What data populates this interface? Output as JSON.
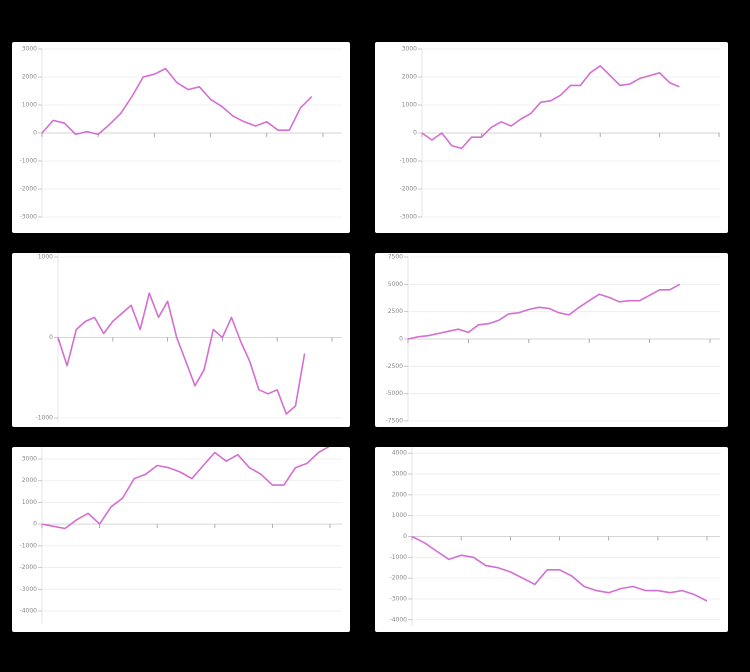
{
  "chart_data": [
    {
      "type": "line",
      "color": "#d46fd2",
      "grid": true,
      "x": [
        0,
        1,
        2,
        3,
        4,
        5,
        6,
        7,
        8,
        9,
        10,
        11,
        12,
        13,
        14,
        15,
        16,
        17,
        18,
        19,
        20,
        21,
        22,
        23,
        24
      ],
      "values": [
        0,
        450,
        350,
        -50,
        50,
        -50,
        300,
        700,
        1300,
        2000,
        2100,
        2300,
        1800,
        1550,
        1650,
        1200,
        950,
        600,
        400,
        250,
        400,
        100,
        100,
        900,
        1300
      ],
      "xlim": [
        0,
        25
      ],
      "xticks": [
        0,
        5,
        10,
        15,
        20,
        25
      ],
      "ylim": [
        -3000,
        3000
      ],
      "yticks": [
        3000,
        2000,
        1000,
        0,
        -1000,
        -2000,
        -3000
      ]
    },
    {
      "type": "line",
      "color": "#d46fd2",
      "grid": true,
      "x": [
        0,
        1,
        2,
        3,
        4,
        5,
        6,
        7,
        8,
        9,
        10,
        11,
        12,
        13,
        14,
        15,
        16,
        17,
        18,
        19,
        20,
        21,
        22,
        23,
        24,
        25,
        26
      ],
      "values": [
        0,
        -250,
        0,
        -450,
        -550,
        -150,
        -150,
        200,
        400,
        250,
        500,
        700,
        1100,
        1150,
        1350,
        1700,
        1700,
        2150,
        2400,
        2050,
        1700,
        1750,
        1950,
        2050,
        2150,
        1800,
        1650
      ],
      "xlim": [
        0,
        30
      ],
      "xticks": [
        0,
        6,
        12,
        18,
        24,
        30
      ],
      "ylim": [
        -3000,
        3000
      ],
      "yticks": [
        3000,
        2000,
        1000,
        0,
        -1000,
        -2000,
        -3000
      ]
    },
    {
      "type": "line",
      "color": "#d46fd2",
      "grid": true,
      "x": [
        0,
        1,
        2,
        3,
        4,
        5,
        6,
        7,
        8,
        9,
        10,
        11,
        12,
        13,
        14,
        15,
        16,
        17,
        18,
        19,
        20,
        21,
        22,
        23,
        24,
        25,
        26,
        27
      ],
      "values": [
        0,
        -350,
        100,
        200,
        250,
        50,
        200,
        300,
        400,
        100,
        550,
        250,
        450,
        0,
        -300,
        -600,
        -400,
        100,
        0,
        250,
        -50,
        -300,
        -650,
        -700,
        -650,
        -950,
        -850,
        -200
      ],
      "xlim": [
        0,
        30
      ],
      "xticks": [
        0,
        6,
        12,
        18,
        24,
        30
      ],
      "ylim": [
        -1050,
        1050
      ],
      "yticks": [
        1000,
        0,
        -1000
      ]
    },
    {
      "type": "line",
      "color": "#d46fd2",
      "grid": true,
      "x": [
        0,
        1,
        2,
        3,
        4,
        5,
        6,
        7,
        8,
        9,
        10,
        11,
        12,
        13,
        14,
        15,
        16,
        17,
        18,
        19,
        20,
        21,
        22,
        23,
        24,
        25,
        26,
        27
      ],
      "values": [
        0,
        200,
        300,
        500,
        700,
        900,
        600,
        1300,
        1400,
        1700,
        2300,
        2400,
        2700,
        2900,
        2800,
        2400,
        2200,
        2900,
        3500,
        4100,
        3800,
        3400,
        3500,
        3500,
        4000,
        4500,
        4500,
        5000
      ],
      "xlim": [
        0,
        30
      ],
      "xticks": [
        0,
        6,
        12,
        18,
        24,
        30
      ],
      "ylim": [
        -7500,
        7500
      ],
      "yticks": [
        7500,
        5000,
        2500,
        0,
        -2500,
        -5000,
        -7500
      ]
    },
    {
      "type": "line",
      "color": "#d46fd2",
      "grid": true,
      "x": [
        0,
        1,
        2,
        3,
        4,
        5,
        6,
        7,
        8,
        9,
        10,
        11,
        12,
        13,
        14,
        15,
        16,
        17,
        18,
        19,
        20,
        21,
        22,
        23,
        24,
        25
      ],
      "values": [
        0,
        -100,
        -200,
        200,
        500,
        0,
        800,
        1200,
        2100,
        2300,
        2700,
        2600,
        2400,
        2100,
        2700,
        3300,
        2900,
        3200,
        2600,
        2300,
        1800,
        1800,
        2600,
        2800,
        3300,
        3600
      ],
      "xlim": [
        0,
        25
      ],
      "xticks": [
        0,
        5,
        10,
        15,
        20,
        25
      ],
      "ylim": [
        -4600,
        3600
      ],
      "yticks": [
        3000,
        2000,
        1000,
        0,
        -1000,
        -2000,
        -3000,
        -4000
      ]
    },
    {
      "type": "line",
      "color": "#d46fd2",
      "grid": true,
      "x": [
        0,
        1,
        2,
        3,
        4,
        5,
        6,
        7,
        8,
        9,
        10,
        11,
        12,
        13,
        14,
        15,
        16,
        17,
        18,
        19,
        20,
        21,
        22,
        23,
        24
      ],
      "values": [
        0,
        -300,
        -700,
        -1100,
        -900,
        -1000,
        -1400,
        -1500,
        -1700,
        -2000,
        -2300,
        -1600,
        -1600,
        -1900,
        -2400,
        -2600,
        -2700,
        -2500,
        -2400,
        -2600,
        -2600,
        -2700,
        -2600,
        -2800,
        -3100
      ],
      "xlim": [
        0,
        24
      ],
      "xticks": [
        0,
        4,
        8,
        12,
        16,
        20,
        24
      ],
      "ylim": [
        -4300,
        4300
      ],
      "yticks": [
        4000,
        3000,
        2000,
        1000,
        0,
        -1000,
        -2000,
        -3000,
        -4000
      ]
    }
  ]
}
